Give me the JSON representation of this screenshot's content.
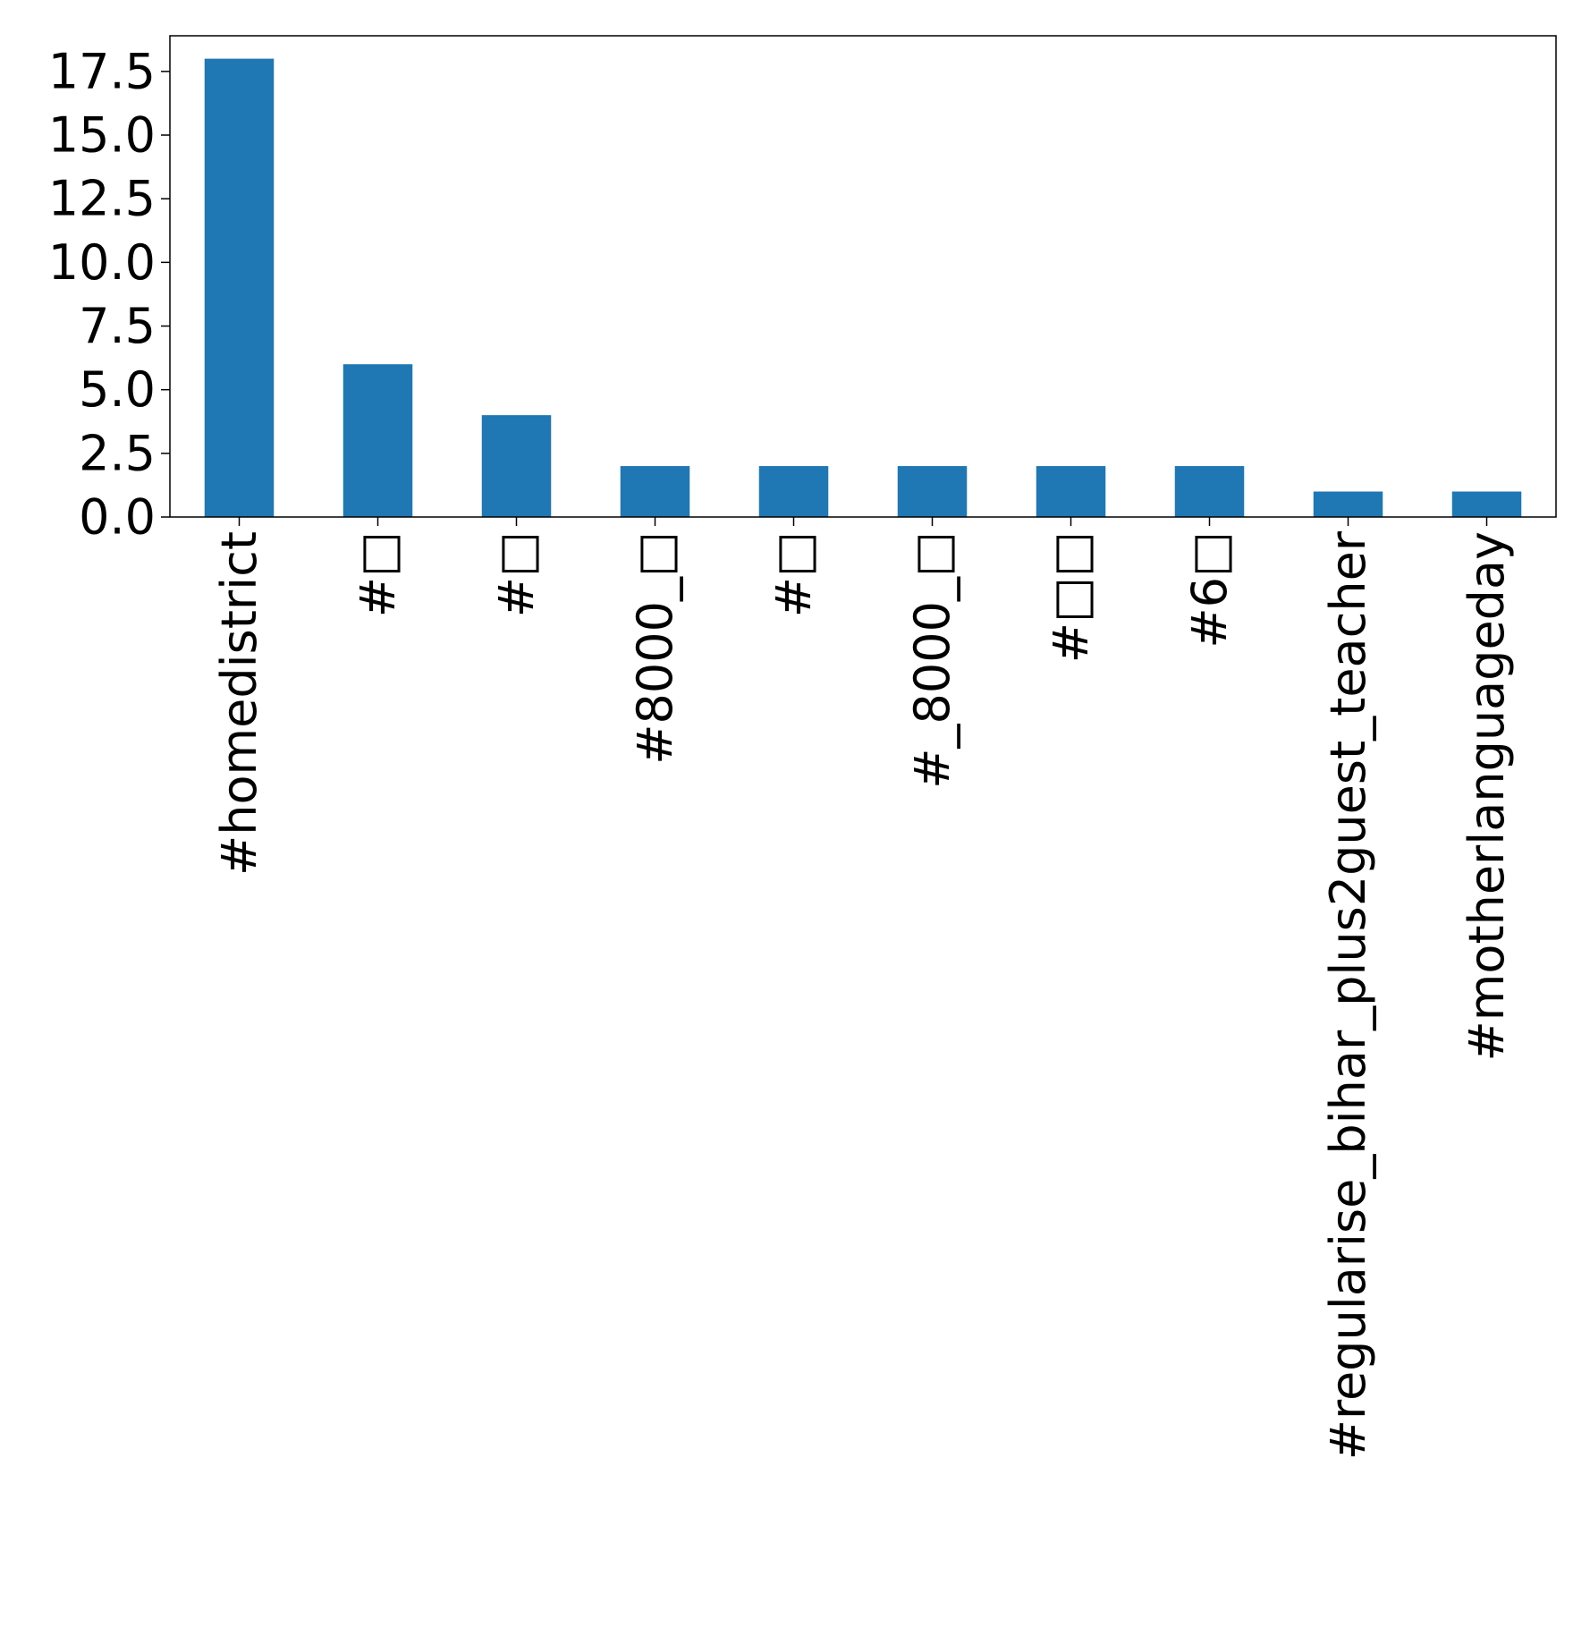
{
  "chart_data": {
    "type": "bar",
    "title": "",
    "xlabel": "",
    "ylabel": "",
    "categories": [
      "#homedistrict",
      "#□",
      "#□",
      "#8000_□",
      "#□",
      "#_8000_□",
      "#□□",
      "#6□",
      "#regularise_bihar_plus2guest_teacher",
      "#motherlanguageday"
    ],
    "values": [
      18,
      6,
      4,
      2,
      2,
      2,
      2,
      2,
      1,
      1
    ],
    "ylim": [
      0,
      18.9
    ],
    "yticks": [
      0.0,
      2.5,
      5.0,
      7.5,
      10.0,
      12.5,
      15.0,
      17.5
    ],
    "ytick_labels": [
      "0.0",
      "2.5",
      "5.0",
      "7.5",
      "10.0",
      "12.5",
      "15.0",
      "17.5"
    ],
    "grid": false,
    "legend": "none",
    "bar_color": "#1f77b4"
  }
}
